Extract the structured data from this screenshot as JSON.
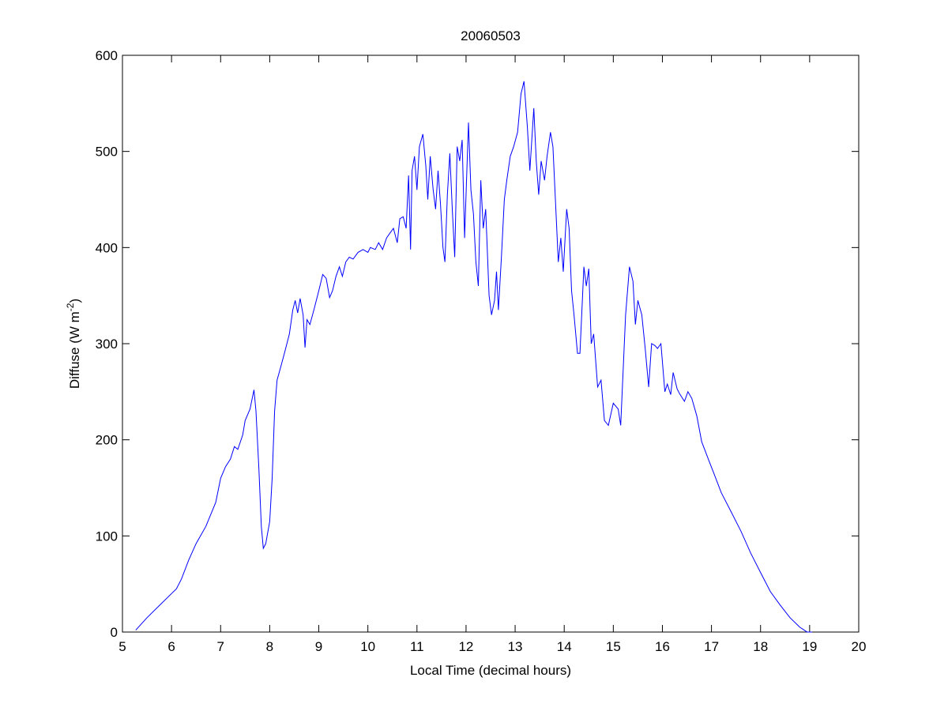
{
  "chart_data": {
    "type": "line",
    "title": "20060503",
    "xlabel": "Local Time (decimal hours)",
    "ylabel_main": "Diffuse (W m",
    "ylabel_sup": "-2",
    "ylabel_close": ")",
    "xlim": [
      5,
      20
    ],
    "ylim": [
      0,
      600
    ],
    "xticks": [
      5,
      6,
      7,
      8,
      9,
      10,
      11,
      12,
      13,
      14,
      15,
      16,
      17,
      18,
      19,
      20
    ],
    "yticks": [
      0,
      100,
      200,
      300,
      400,
      500,
      600
    ],
    "grid": false,
    "line_color": "#0000ff",
    "x": [
      5.27,
      5.5,
      5.8,
      6.0,
      6.1,
      6.2,
      6.35,
      6.5,
      6.7,
      6.9,
      7.0,
      7.1,
      7.2,
      7.28,
      7.35,
      7.45,
      7.5,
      7.6,
      7.68,
      7.72,
      7.78,
      7.83,
      7.87,
      7.92,
      8.0,
      8.05,
      8.1,
      8.15,
      8.22,
      8.3,
      8.4,
      8.47,
      8.52,
      8.57,
      8.62,
      8.68,
      8.72,
      8.76,
      8.82,
      8.9,
      9.0,
      9.08,
      9.15,
      9.22,
      9.28,
      9.35,
      9.42,
      9.48,
      9.55,
      9.62,
      9.7,
      9.8,
      9.9,
      10.0,
      10.05,
      10.15,
      10.22,
      10.3,
      10.38,
      10.45,
      10.52,
      10.6,
      10.65,
      10.72,
      10.78,
      10.83,
      10.87,
      10.9,
      10.95,
      11.0,
      11.05,
      11.12,
      11.18,
      11.22,
      11.27,
      11.33,
      11.38,
      11.43,
      11.48,
      11.53,
      11.57,
      11.62,
      11.67,
      11.72,
      11.77,
      11.82,
      11.87,
      11.92,
      11.97,
      12.05,
      12.1,
      12.15,
      12.2,
      12.25,
      12.3,
      12.35,
      12.4,
      12.47,
      12.52,
      12.58,
      12.62,
      12.66,
      12.72,
      12.78,
      12.83,
      12.9,
      12.97,
      13.05,
      13.12,
      13.18,
      13.25,
      13.3,
      13.38,
      13.43,
      13.48,
      13.53,
      13.6,
      13.65,
      13.72,
      13.77,
      13.83,
      13.88,
      13.93,
      13.98,
      14.05,
      14.1,
      14.15,
      14.2,
      14.27,
      14.32,
      14.4,
      14.45,
      14.5,
      14.55,
      14.6,
      14.68,
      14.75,
      14.82,
      14.9,
      15.0,
      15.1,
      15.15,
      15.25,
      15.33,
      15.4,
      15.45,
      15.5,
      15.58,
      15.65,
      15.72,
      15.78,
      15.85,
      15.9,
      15.97,
      16.05,
      16.1,
      16.17,
      16.22,
      16.3,
      16.35,
      16.45,
      16.52,
      16.6,
      16.7,
      16.8,
      16.95,
      17.05,
      17.2,
      17.4,
      17.6,
      17.8,
      18.0,
      18.2,
      18.4,
      18.6,
      18.8,
      18.95,
      19.05
    ],
    "y": [
      2,
      15,
      30,
      40,
      45,
      55,
      75,
      92,
      110,
      135,
      160,
      172,
      180,
      193,
      190,
      205,
      220,
      232,
      252,
      230,
      170,
      110,
      87,
      92,
      115,
      160,
      230,
      262,
      275,
      290,
      310,
      335,
      345,
      332,
      347,
      330,
      296,
      325,
      320,
      335,
      355,
      372,
      368,
      348,
      355,
      370,
      380,
      370,
      385,
      390,
      388,
      395,
      398,
      395,
      400,
      398,
      405,
      398,
      410,
      415,
      420,
      405,
      430,
      432,
      420,
      475,
      398,
      480,
      495,
      460,
      505,
      518,
      485,
      450,
      495,
      460,
      440,
      480,
      445,
      400,
      385,
      455,
      498,
      440,
      390,
      505,
      490,
      512,
      410,
      530,
      460,
      435,
      385,
      360,
      470,
      420,
      440,
      350,
      330,
      345,
      375,
      335,
      390,
      450,
      470,
      495,
      505,
      520,
      560,
      573,
      525,
      480,
      545,
      490,
      455,
      490,
      470,
      495,
      520,
      505,
      440,
      385,
      410,
      375,
      440,
      420,
      355,
      330,
      290,
      290,
      380,
      360,
      378,
      300,
      310,
      255,
      262,
      220,
      215,
      238,
      232,
      215,
      330,
      380,
      365,
      320,
      345,
      330,
      295,
      255,
      300,
      298,
      295,
      300,
      250,
      258,
      247,
      270,
      253,
      248,
      240,
      250,
      243,
      225,
      198,
      178,
      165,
      145,
      125,
      105,
      82,
      62,
      42,
      28,
      15,
      5,
      0,
      0
    ]
  }
}
